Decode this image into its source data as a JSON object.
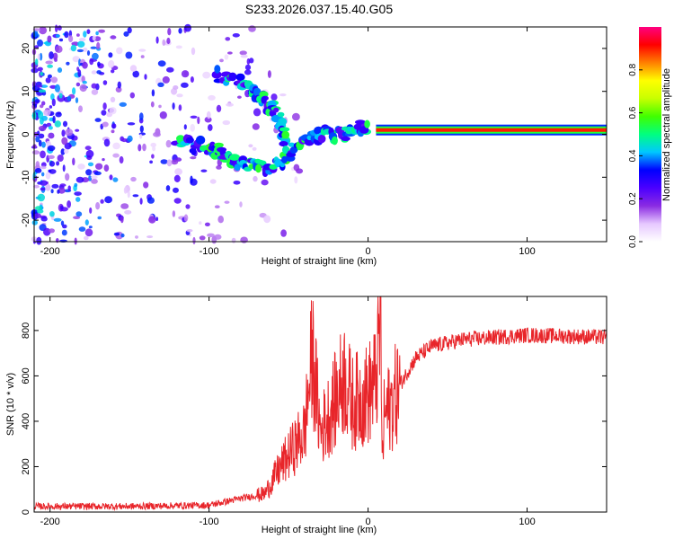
{
  "figure_title": "S233.2026.037.15.40.G05",
  "chart_data": [
    {
      "type": "heatmap",
      "title": "S233.2026.037.15.40.G05",
      "xlabel": "Height of straight line (km)",
      "ylabel": "Frequency (Hz)",
      "xlim": [
        -210,
        150
      ],
      "ylim": [
        -25,
        25
      ],
      "xticks": [
        -200,
        -100,
        0,
        100
      ],
      "yticks": [
        -20,
        -10,
        0,
        10,
        20
      ],
      "colorbar": {
        "label": "Normalized spectral amplitude",
        "range": [
          0,
          1
        ],
        "ticks": [
          0.0,
          0.2,
          0.4,
          0.6,
          0.8
        ],
        "tick_labels": [
          "0.0",
          "0.2",
          "0.4",
          "0.6",
          "0.8"
        ],
        "colors": [
          "#ffffff",
          "#e6c8ff",
          "#8a2be2",
          "#4b00ff",
          "#0000ff",
          "#00c8ff",
          "#00ff80",
          "#40ff00",
          "#c8ff00",
          "#ffff00",
          "#ff8000",
          "#ff0000",
          "#ff0080"
        ]
      },
      "features": [
        {
          "name": "strong signal band",
          "x_range": [
            5,
            150
          ],
          "freq": 1,
          "amplitude": 0.9
        },
        {
          "name": "upper branch",
          "points": [
            [
              -95,
              14
            ],
            [
              -75,
              11
            ],
            [
              -65,
              8
            ],
            [
              -55,
              3
            ],
            [
              -50,
              -5
            ]
          ]
        },
        {
          "name": "lower branch",
          "points": [
            [
              -120,
              -2
            ],
            [
              -100,
              -3
            ],
            [
              -90,
              -5
            ],
            [
              -75,
              -7
            ],
            [
              -60,
              -8
            ],
            [
              -45,
              -3
            ],
            [
              -30,
              0
            ],
            [
              -15,
              0
            ],
            [
              0,
              2
            ]
          ]
        },
        {
          "name": "noise cloud",
          "x_range": [
            -210,
            -90
          ],
          "freq_range": [
            -25,
            25
          ],
          "amplitude": 0.25
        }
      ]
    },
    {
      "type": "line",
      "xlabel": "Height of straight line (km)",
      "ylabel": "SNR (10 * v/v)",
      "xlim": [
        -210,
        150
      ],
      "ylim": [
        0,
        950
      ],
      "xticks": [
        -200,
        -100,
        0,
        100
      ],
      "yticks": [
        0,
        200,
        400,
        600,
        800
      ],
      "line_color": "#e8252a",
      "series": [
        {
          "name": "SNR",
          "x": [
            -210,
            -150,
            -100,
            -80,
            -65,
            -55,
            -45,
            -40,
            -35,
            -30,
            -20,
            -15,
            -10,
            0,
            5,
            8,
            9,
            10,
            15,
            20,
            30,
            40,
            60,
            100,
            150
          ],
          "values": [
            25,
            25,
            30,
            60,
            80,
            200,
            300,
            350,
            700,
            350,
            500,
            600,
            480,
            520,
            580,
            850,
            200,
            420,
            480,
            560,
            680,
            730,
            760,
            780,
            770
          ]
        }
      ]
    }
  ]
}
